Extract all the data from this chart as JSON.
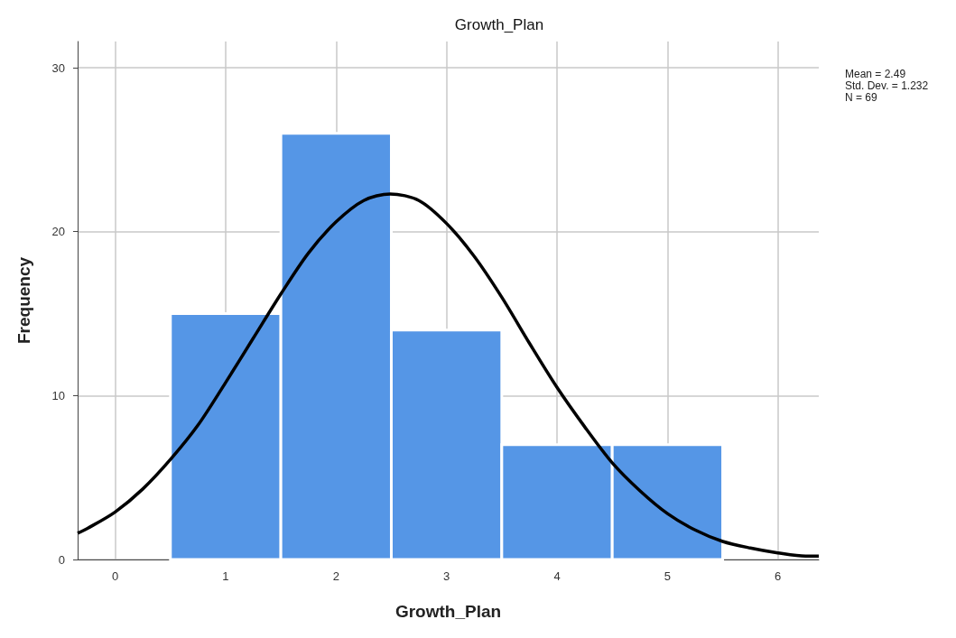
{
  "chart_data": {
    "type": "histogram",
    "title": "Growth_Plan",
    "xlabel": "Growth_Plan",
    "ylabel": "Frequency",
    "bins": [
      0.5,
      1.5,
      2.5,
      3.5,
      4.5,
      5.5
    ],
    "values": [
      15,
      26,
      14,
      7,
      7
    ],
    "color": "#5596e6",
    "series": [
      {
        "type": "line",
        "color": "#000000",
        "x": [
          -0.34,
          -0.25,
          0,
          0.25,
          0.5,
          0.75,
          1,
          1.25,
          1.5,
          1.75,
          2,
          2.25,
          2.49,
          2.75,
          3,
          3.25,
          3.5,
          3.75,
          4,
          4.25,
          4.5,
          4.75,
          5,
          5.25,
          5.5,
          5.75,
          6,
          6.25,
          6.37
        ],
        "values": [
          1.6,
          1.9,
          2.9,
          4.3,
          6.1,
          8.2,
          10.8,
          13.5,
          16.2,
          18.7,
          20.6,
          21.9,
          22.3,
          21.9,
          20.5,
          18.5,
          16,
          13.2,
          10.5,
          8.1,
          5.9,
          4.2,
          2.8,
          1.8,
          1.1,
          0.7,
          0.4,
          0.2,
          0.2
        ]
      }
    ],
    "xlim": [
      -0.34,
      6.37
    ],
    "xticks": [
      0,
      1,
      2,
      3,
      4,
      5,
      6
    ],
    "ylim": [
      0,
      31.6
    ],
    "yticks": [
      0,
      10,
      20,
      30
    ],
    "grid": true,
    "annotations": [
      "Mean = 2.49",
      "Std. Dev. = 1.232",
      "N = 69"
    ]
  }
}
